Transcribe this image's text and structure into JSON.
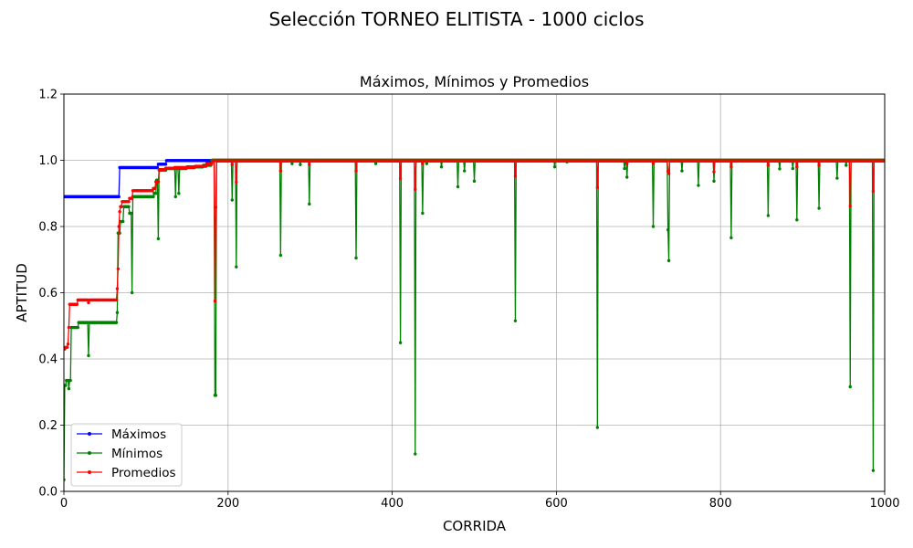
{
  "figure": {
    "suptitle": "Selección TORNEO ELITISTA - 1000 ciclos"
  },
  "chart_data": {
    "type": "line",
    "title": "Máximos, Mínimos y Promedios",
    "xlabel": "CORRIDA",
    "ylabel": "APTITUD",
    "xlim": [
      0,
      1000
    ],
    "ylim": [
      0.0,
      1.2
    ],
    "xticks": [
      0,
      200,
      400,
      600,
      800,
      1000
    ],
    "yticks": [
      0.0,
      0.2,
      0.4,
      0.6,
      0.8,
      1.0,
      1.2
    ],
    "grid": true,
    "legend_position": "lower-left",
    "n_points": 1000,
    "series": [
      {
        "name": "Máximos",
        "color": "#0000ff",
        "steps": [
          [
            0,
            0.89
          ],
          [
            68,
            0.978
          ],
          [
            115,
            0.988
          ],
          [
            125,
            0.999
          ],
          [
            182,
            1.0
          ]
        ],
        "dips": []
      },
      {
        "name": "Mínimos",
        "color": "#008000",
        "steps": [
          [
            0,
            0.035
          ],
          [
            1,
            0.32
          ],
          [
            3,
            0.335
          ],
          [
            6,
            0.31
          ],
          [
            7,
            0.335
          ],
          [
            9,
            0.495
          ],
          [
            18,
            0.51
          ],
          [
            65,
            0.54
          ],
          [
            66,
            0.78
          ],
          [
            69,
            0.815
          ],
          [
            73,
            0.86
          ],
          [
            80,
            0.84
          ],
          [
            83,
            0.89
          ],
          [
            110,
            0.9
          ],
          [
            113,
            0.94
          ],
          [
            116,
            0.97
          ],
          [
            125,
            0.975
          ],
          [
            150,
            0.98
          ],
          [
            170,
            0.985
          ],
          [
            180,
            1.0
          ]
        ],
        "dips": [
          [
            30,
            0.41
          ],
          [
            67,
            0.78
          ],
          [
            83,
            0.6
          ],
          [
            115,
            0.763
          ],
          [
            136,
            0.89
          ],
          [
            140,
            0.9
          ],
          [
            184,
            0.29
          ],
          [
            185,
            0.29
          ],
          [
            205,
            0.88
          ],
          [
            210,
            0.678
          ],
          [
            264,
            0.713
          ],
          [
            278,
            0.99
          ],
          [
            288,
            0.987
          ],
          [
            299,
            0.868
          ],
          [
            356,
            0.705
          ],
          [
            380,
            0.99
          ],
          [
            410,
            0.449
          ],
          [
            428,
            0.113
          ],
          [
            437,
            0.84
          ],
          [
            442,
            0.99
          ],
          [
            460,
            0.98
          ],
          [
            480,
            0.92
          ],
          [
            488,
            0.968
          ],
          [
            500,
            0.937
          ],
          [
            550,
            0.515
          ],
          [
            598,
            0.98
          ],
          [
            613,
            0.995
          ],
          [
            650,
            0.193
          ],
          [
            683,
            0.975
          ],
          [
            686,
            0.949
          ],
          [
            718,
            0.8
          ],
          [
            736,
            0.79
          ],
          [
            737,
            0.697
          ],
          [
            753,
            0.968
          ],
          [
            773,
            0.924
          ],
          [
            792,
            0.937
          ],
          [
            813,
            0.766
          ],
          [
            858,
            0.833
          ],
          [
            872,
            0.974
          ],
          [
            888,
            0.975
          ],
          [
            893,
            0.82
          ],
          [
            920,
            0.855
          ],
          [
            942,
            0.946
          ],
          [
            953,
            0.985
          ],
          [
            958,
            0.316
          ],
          [
            986,
            0.063
          ]
        ]
      },
      {
        "name": "Promedios",
        "color": "#ff0000",
        "steps": [
          [
            0,
            0.43
          ],
          [
            2,
            0.435
          ],
          [
            5,
            0.445
          ],
          [
            6,
            0.495
          ],
          [
            7,
            0.565
          ],
          [
            17,
            0.578
          ],
          [
            65,
            0.612
          ],
          [
            66,
            0.672
          ],
          [
            67,
            0.8
          ],
          [
            68,
            0.845
          ],
          [
            69,
            0.86
          ],
          [
            71,
            0.875
          ],
          [
            80,
            0.885
          ],
          [
            84,
            0.908
          ],
          [
            109,
            0.915
          ],
          [
            112,
            0.935
          ],
          [
            116,
            0.972
          ],
          [
            124,
            0.976
          ],
          [
            135,
            0.978
          ],
          [
            160,
            0.982
          ],
          [
            174,
            0.99
          ],
          [
            181,
            0.998
          ]
        ],
        "dips": [
          [
            30,
            0.57
          ],
          [
            184,
            0.575
          ],
          [
            185,
            0.858
          ],
          [
            205,
            0.987
          ],
          [
            210,
            0.934
          ],
          [
            264,
            0.968
          ],
          [
            299,
            0.987
          ],
          [
            356,
            0.968
          ],
          [
            410,
            0.945
          ],
          [
            428,
            0.912
          ],
          [
            437,
            0.99
          ],
          [
            550,
            0.952
          ],
          [
            650,
            0.918
          ],
          [
            686,
            0.99
          ],
          [
            718,
            0.99
          ],
          [
            736,
            0.967
          ],
          [
            737,
            0.96
          ],
          [
            792,
            0.965
          ],
          [
            813,
            0.98
          ],
          [
            858,
            0.985
          ],
          [
            893,
            0.98
          ],
          [
            920,
            0.985
          ],
          [
            958,
            0.862
          ],
          [
            986,
            0.906
          ]
        ]
      }
    ]
  }
}
